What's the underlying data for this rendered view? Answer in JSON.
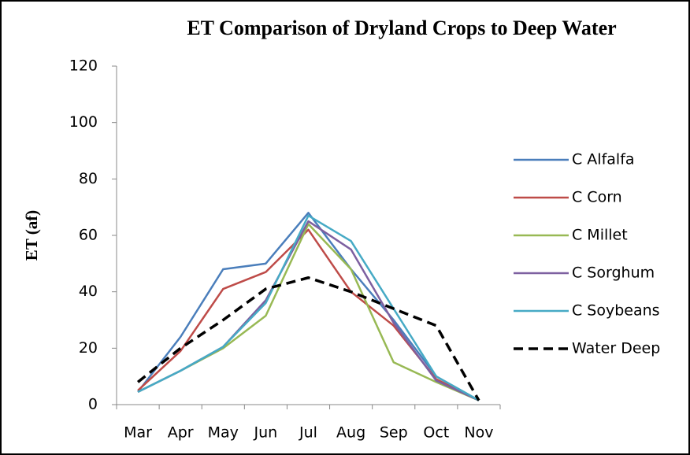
{
  "chart_data": {
    "type": "line",
    "title": "ET Comparison of Dryland Crops to Deep Water",
    "ylabel": "ET (af)",
    "categories": [
      "Mar",
      "Apr",
      "May",
      "Jun",
      "Jul",
      "Aug",
      "Sep",
      "Oct",
      "Nov"
    ],
    "series": [
      {
        "name": "C Alfalfa",
        "color": "#4a7ebb",
        "dashed": false,
        "values": [
          4.5,
          24,
          48,
          50,
          68,
          48,
          30,
          10,
          1.5
        ]
      },
      {
        "name": "C Corn",
        "color": "#be4b48",
        "dashed": false,
        "values": [
          5,
          19,
          41,
          47,
          62,
          40,
          28,
          9,
          1.5
        ]
      },
      {
        "name": "C Millet",
        "color": "#98b954",
        "dashed": false,
        "values": [
          4.5,
          12,
          20,
          31.5,
          64,
          48,
          15,
          8,
          1.5
        ]
      },
      {
        "name": "C Sorghum",
        "color": "#7d60a0",
        "dashed": false,
        "values": [
          4.5,
          12,
          20.5,
          37,
          65,
          55,
          29,
          8.5,
          1.5
        ]
      },
      {
        "name": "C Soybeans",
        "color": "#46aac5",
        "dashed": false,
        "values": [
          4.5,
          12,
          20.5,
          36,
          67,
          58,
          34,
          10,
          1.5
        ]
      },
      {
        "name": "Water Deep",
        "color": "#000000",
        "dashed": true,
        "values": [
          8,
          20,
          30,
          41,
          45,
          40,
          34,
          28,
          1.5
        ]
      }
    ],
    "ylim": [
      0,
      120
    ],
    "yticks": [
      0,
      20,
      40,
      60,
      80,
      100,
      120
    ],
    "grid": false,
    "legend": "right"
  }
}
